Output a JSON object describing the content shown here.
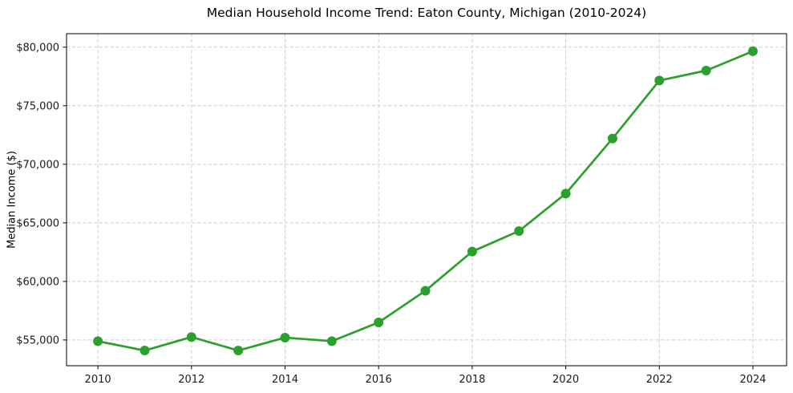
{
  "chart_data": {
    "type": "line",
    "title": "Median Household Income Trend: Eaton County, Michigan (2010-2024)",
    "xlabel": "",
    "ylabel": "Median Income ($)",
    "x": [
      2010,
      2011,
      2012,
      2013,
      2014,
      2015,
      2016,
      2017,
      2018,
      2019,
      2020,
      2021,
      2022,
      2023,
      2024
    ],
    "values": [
      54900,
      54100,
      55250,
      54100,
      55200,
      54900,
      56500,
      59200,
      62550,
      64300,
      67500,
      72200,
      77150,
      78000,
      79650
    ],
    "x_ticks": [
      2010,
      2012,
      2014,
      2016,
      2018,
      2020,
      2022,
      2024
    ],
    "x_tick_labels": [
      "2010",
      "2012",
      "2014",
      "2016",
      "2018",
      "2020",
      "2022",
      "2024"
    ],
    "y_ticks": [
      55000,
      60000,
      65000,
      70000,
      75000,
      80000
    ],
    "y_tick_labels": [
      "$55,000",
      "$60,000",
      "$65,000",
      "$70,000",
      "$75,000",
      "$80,000"
    ],
    "xlim": [
      2009.33,
      2024.72
    ],
    "ylim": [
      52800,
      81150
    ],
    "grid": true,
    "legend": false,
    "line_color": "#2ca02c",
    "marker": "circle",
    "background_color": "#ffffff"
  }
}
